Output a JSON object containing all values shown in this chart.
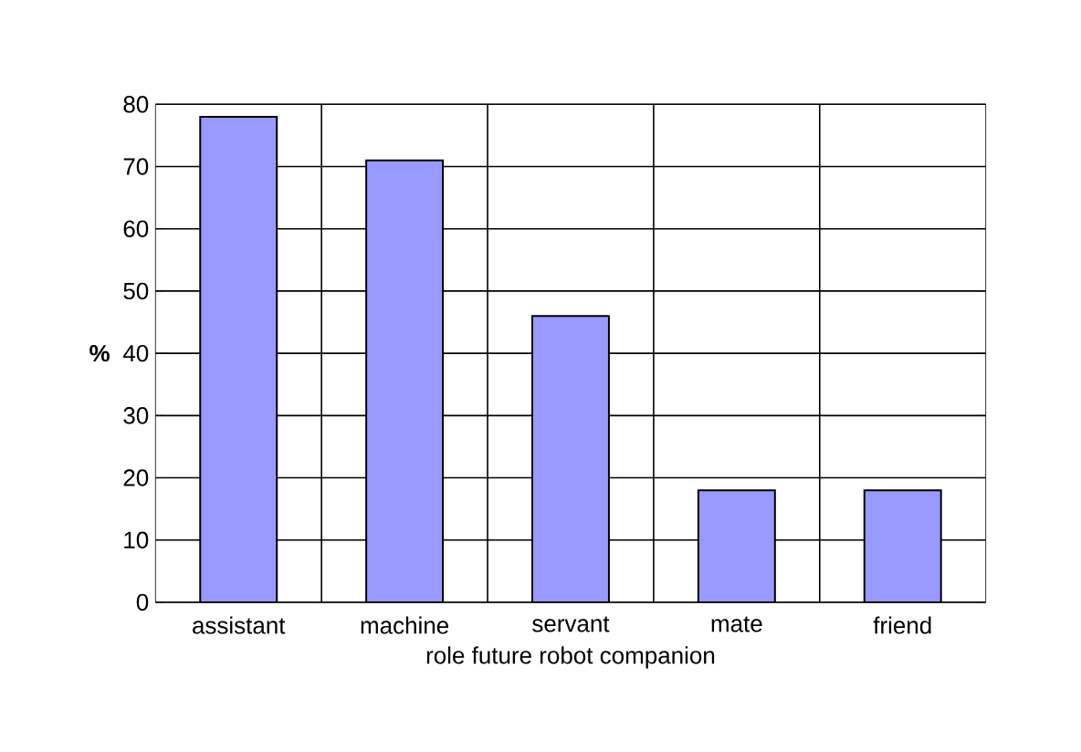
{
  "chart_data": {
    "type": "bar",
    "xlabel": "role future robot companion",
    "ylabel": "%",
    "categories": [
      "assistant",
      "machine",
      "servant",
      "mate",
      "friend"
    ],
    "values": [
      78,
      71,
      46,
      18,
      18
    ],
    "color": "#9999ff",
    "ylim": [
      0,
      80
    ],
    "yticks": [
      0,
      10,
      20,
      30,
      40,
      50,
      60,
      70,
      80
    ],
    "grid": true
  }
}
